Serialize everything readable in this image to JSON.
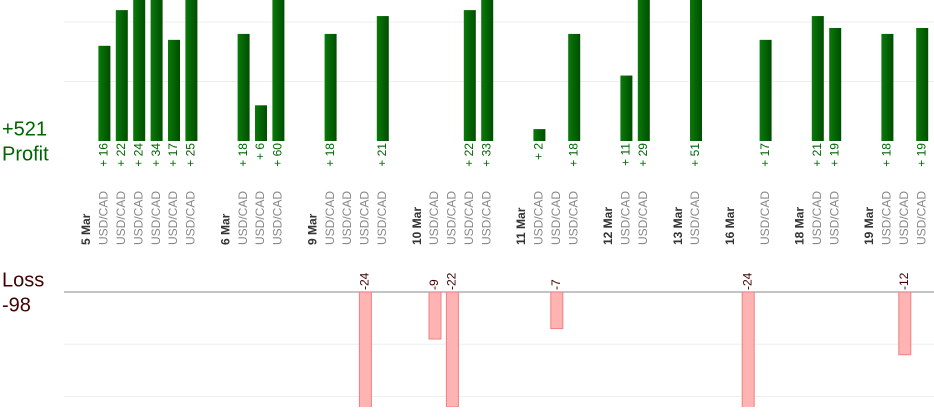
{
  "chart_data": {
    "type": "bar",
    "dates": [
      "5 Mar",
      null,
      null,
      null,
      null,
      null,
      null,
      null,
      "6 Mar",
      null,
      null,
      null,
      null,
      "9 Mar",
      null,
      null,
      null,
      null,
      null,
      "10 Mar",
      null,
      null,
      null,
      null,
      null,
      "11 Mar",
      null,
      null,
      null,
      null,
      "12 Mar",
      null,
      null,
      null,
      "13 Mar",
      null,
      null,
      "16 Mar",
      null,
      null,
      null,
      "18 Mar",
      null,
      null,
      null,
      "19 Mar",
      null,
      null,
      null
    ],
    "categories": [
      null,
      "USD/CAD",
      "USD/CAD",
      "USD/CAD",
      "USD/CAD",
      "USD/CAD",
      "USD/CAD",
      null,
      null,
      "USD/CAD",
      "USD/CAD",
      "USD/CAD",
      null,
      null,
      "USD/CAD",
      "USD/CAD",
      "USD/CAD",
      "USD/CAD",
      null,
      null,
      "USD/CAD",
      "USD/CAD",
      "USD/CAD",
      "USD/CAD",
      null,
      null,
      "USD/CAD",
      "USD/CAD",
      "USD/CAD",
      null,
      null,
      "USD/CAD",
      "USD/CAD",
      null,
      null,
      "USD/CAD",
      null,
      null,
      null,
      "USD/CAD",
      null,
      null,
      "USD/CAD",
      "USD/CAD",
      null,
      null,
      "USD/CAD",
      "USD/CAD",
      "USD/CAD"
    ],
    "panels": [
      {
        "name": "Profit",
        "total": "+521",
        "color": "#006400",
        "label_color": "#006400",
        "ylim": [
          0,
          23.7
        ],
        "yticks": [
          10,
          20
        ],
        "values": [
          null,
          16,
          22,
          24,
          34,
          17,
          25,
          null,
          null,
          18,
          6,
          60,
          null,
          null,
          18,
          null,
          null,
          21,
          null,
          null,
          null,
          null,
          22,
          33,
          null,
          null,
          2,
          null,
          18,
          null,
          null,
          11,
          29,
          null,
          null,
          51,
          null,
          null,
          null,
          17,
          null,
          null,
          21,
          19,
          null,
          null,
          18,
          null,
          19
        ],
        "value_labels": [
          null,
          "+ 16",
          "+ 22",
          "+ 24",
          "+ 34",
          "+ 17",
          "+ 25",
          null,
          null,
          "+ 18",
          "+ 6",
          "+ 60",
          null,
          null,
          "+ 18",
          null,
          null,
          "+ 21",
          null,
          null,
          null,
          null,
          "+ 22",
          "+ 33",
          null,
          null,
          "+ 2",
          null,
          "+ 18",
          null,
          null,
          "+ 11",
          "+ 29",
          null,
          null,
          "+ 51",
          null,
          null,
          null,
          "+ 17",
          null,
          null,
          "+ 21",
          "+ 19",
          null,
          null,
          "+ 18",
          null,
          "+ 19"
        ]
      },
      {
        "name": "Loss",
        "total": "-98",
        "color": "#ffb3b3",
        "label_color": "#400000",
        "ylim": [
          -22,
          0
        ],
        "yticks": [
          -20,
          -10,
          0
        ],
        "values": [
          null,
          null,
          null,
          null,
          null,
          null,
          null,
          null,
          null,
          null,
          null,
          null,
          null,
          null,
          null,
          null,
          -24,
          null,
          null,
          null,
          -9,
          -22,
          null,
          null,
          null,
          null,
          null,
          -7,
          null,
          null,
          null,
          null,
          null,
          null,
          null,
          null,
          null,
          null,
          -24,
          null,
          null,
          null,
          null,
          null,
          null,
          null,
          null,
          -12,
          null
        ]
      }
    ]
  }
}
